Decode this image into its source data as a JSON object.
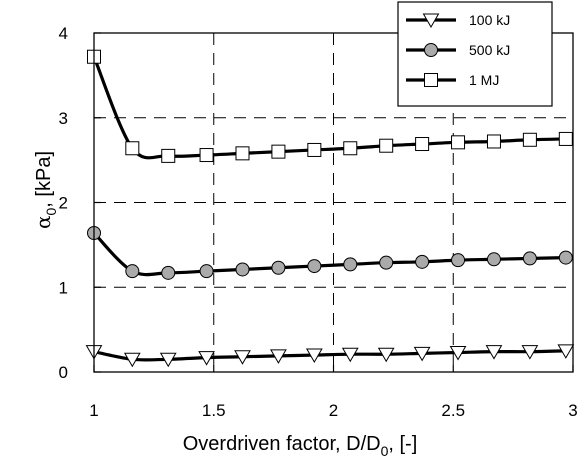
{
  "chart_data": {
    "type": "line",
    "xlabel": "Overdriven factor, D/D",
    "xlabel_sub": "0",
    "xlabel_tail": ", [-]",
    "ylabel_greek": "α",
    "ylabel_sub": "0",
    "ylabel_tail": ", [kPa]",
    "xlim": [
      1,
      3
    ],
    "ylim": [
      0,
      4
    ],
    "x_ticks": [
      1,
      1.5,
      2,
      2.5,
      3
    ],
    "x_tick_labels": [
      "1",
      "1.5",
      "2",
      "2.5",
      "3"
    ],
    "y_ticks": [
      0,
      1,
      2,
      3,
      4
    ],
    "y_tick_labels": [
      "0",
      "1",
      "2",
      "3",
      "4"
    ],
    "grid": true,
    "legend_position": "top-right",
    "series": [
      {
        "name": "100 kJ",
        "marker": "triangle-down",
        "marker_fill": "#ffffff",
        "x": [
          1.0,
          1.16,
          1.31,
          1.47,
          1.62,
          1.77,
          1.92,
          2.07,
          2.22,
          2.37,
          2.52,
          2.67,
          2.82,
          2.97
        ],
        "y": [
          0.24,
          0.15,
          0.15,
          0.17,
          0.18,
          0.19,
          0.2,
          0.21,
          0.21,
          0.22,
          0.23,
          0.24,
          0.24,
          0.25
        ]
      },
      {
        "name": "500 kJ",
        "marker": "circle",
        "marker_fill": "#aaaaaa",
        "x": [
          1.0,
          1.16,
          1.31,
          1.47,
          1.62,
          1.77,
          1.92,
          2.07,
          2.22,
          2.37,
          2.52,
          2.67,
          2.82,
          2.97
        ],
        "y": [
          1.64,
          1.19,
          1.17,
          1.19,
          1.21,
          1.23,
          1.25,
          1.27,
          1.29,
          1.3,
          1.32,
          1.33,
          1.34,
          1.35
        ]
      },
      {
        "name": "1 MJ",
        "marker": "square",
        "marker_fill": "#ffffff",
        "x": [
          1.0,
          1.16,
          1.31,
          1.47,
          1.62,
          1.77,
          1.92,
          2.07,
          2.22,
          2.37,
          2.52,
          2.67,
          2.82,
          2.97
        ],
        "y": [
          3.72,
          2.64,
          2.55,
          2.56,
          2.58,
          2.6,
          2.62,
          2.64,
          2.67,
          2.69,
          2.71,
          2.72,
          2.74,
          2.75
        ]
      }
    ]
  }
}
